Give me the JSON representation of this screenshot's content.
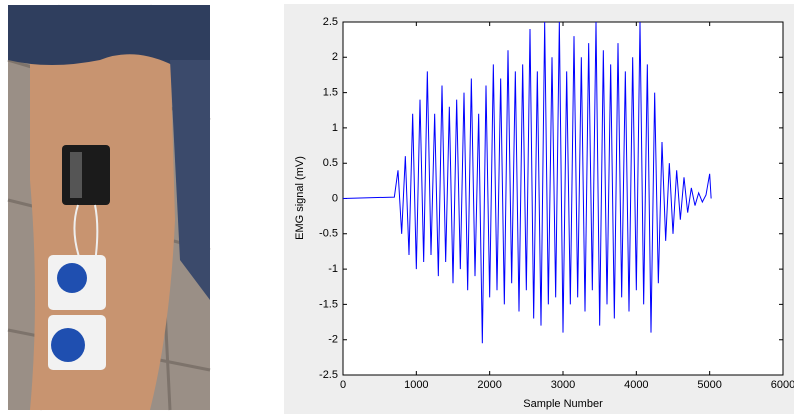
{
  "chart_data": {
    "type": "line",
    "xlabel": "Sample Number",
    "ylabel": "EMG signal (mV)",
    "color": "#0000ff",
    "x": [
      0,
      700,
      750,
      800,
      850,
      900,
      950,
      1000,
      1050,
      1100,
      1150,
      1200,
      1250,
      1300,
      1350,
      1400,
      1450,
      1500,
      1550,
      1600,
      1650,
      1700,
      1750,
      1800,
      1850,
      1900,
      1950,
      2000,
      2050,
      2100,
      2150,
      2200,
      2250,
      2300,
      2350,
      2400,
      2450,
      2500,
      2550,
      2600,
      2650,
      2700,
      2750,
      2800,
      2850,
      2900,
      2950,
      3000,
      3050,
      3100,
      3150,
      3200,
      3250,
      3300,
      3350,
      3400,
      3450,
      3500,
      3550,
      3600,
      3650,
      3700,
      3750,
      3800,
      3850,
      3900,
      3950,
      4000,
      4050,
      4100,
      4150,
      4200,
      4250,
      4300,
      4350,
      4400,
      4450,
      4500,
      4550,
      4600,
      4650,
      4700,
      4750,
      4800,
      4850,
      4900,
      4950,
      5000,
      5020
    ],
    "values": [
      0,
      0.02,
      0.4,
      -0.5,
      0.6,
      -0.8,
      1.2,
      -1.0,
      1.4,
      -0.9,
      1.8,
      -0.8,
      1.2,
      -1.1,
      1.6,
      -0.9,
      1.3,
      -1.2,
      1.4,
      -1.0,
      1.5,
      -1.3,
      1.7,
      -1.1,
      1.2,
      -2.05,
      1.6,
      -1.4,
      1.9,
      -1.3,
      1.7,
      -1.5,
      2.1,
      -1.2,
      1.8,
      -1.6,
      1.9,
      -1.3,
      2.4,
      -1.7,
      1.8,
      -1.8,
      2.5,
      -1.5,
      2.0,
      -1.4,
      2.5,
      -1.9,
      1.8,
      -1.5,
      2.3,
      -1.4,
      2.0,
      -1.6,
      2.2,
      -1.3,
      2.5,
      -1.8,
      2.1,
      -1.5,
      1.9,
      -1.7,
      2.2,
      -1.4,
      1.8,
      -1.6,
      2.0,
      -1.3,
      2.5,
      -1.5,
      1.9,
      -1.9,
      1.5,
      -1.2,
      0.8,
      -0.6,
      0.5,
      -0.5,
      0.4,
      -0.3,
      0.3,
      -0.2,
      0.15,
      -0.1,
      0.08,
      -0.05,
      0.05,
      0.35,
      0
    ],
    "xlim": [
      0,
      6000
    ],
    "xticks": [
      0,
      1000,
      2000,
      3000,
      4000,
      5000,
      6000
    ],
    "ylim": [
      -2.5,
      2.5
    ],
    "yticks": [
      -2.5,
      -2,
      -1.5,
      -1,
      -0.5,
      0,
      0.5,
      1,
      1.5,
      2,
      2.5
    ]
  }
}
